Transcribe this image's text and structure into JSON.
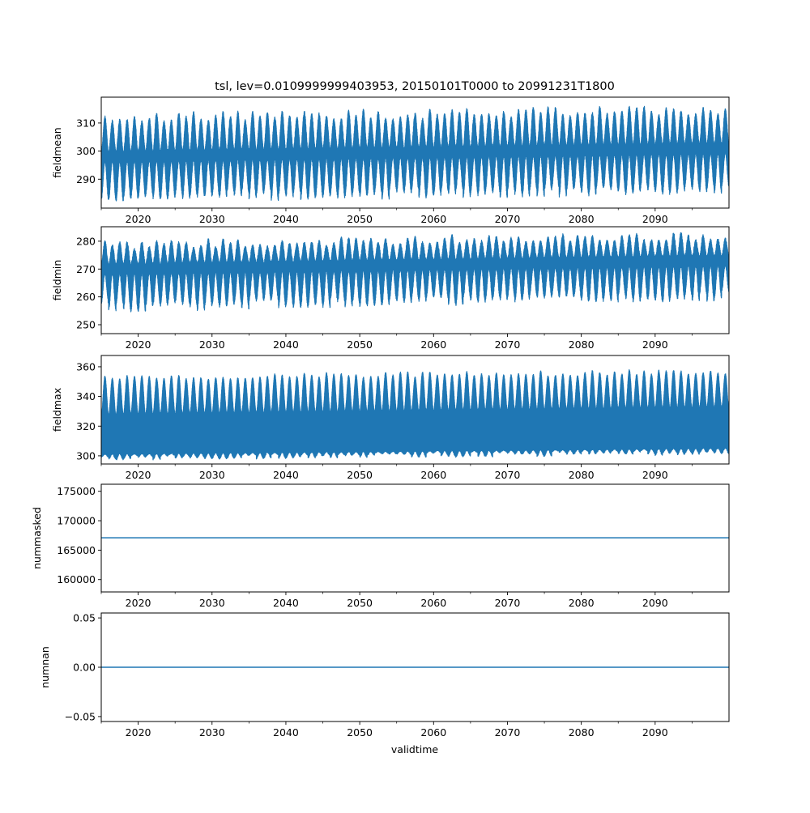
{
  "chart_data": {
    "type": "line",
    "title": "tsl, lev=0.0109999999403953, 20150101T0000 to 20991231T1800",
    "xlabel": "validtime",
    "xlim": [
      2015,
      2100
    ],
    "x_major_ticks": [
      2020,
      2030,
      2040,
      2050,
      2060,
      2070,
      2080,
      2090
    ],
    "x_tick_labels": [
      "2020",
      "2030",
      "2040",
      "2050",
      "2060",
      "2070",
      "2080",
      "2090"
    ],
    "x_minor_ticks": [
      2015,
      2025,
      2035,
      2045,
      2055,
      2065,
      2075,
      2085,
      2095
    ],
    "line_color": "#1f77b4",
    "grid": false,
    "panels": [
      {
        "ylabel": "fieldmean",
        "ylim": [
          279.7,
          319.2
        ],
        "yticks": [
          290,
          300,
          310
        ],
        "ytick_labels": [
          "290",
          "300",
          "310"
        ],
        "kind": "seasonal",
        "envelope_start": {
          "hi_summer": 312,
          "hi_winter": 300,
          "lo_summer": 296,
          "lo_winter": 283
        },
        "envelope_end": {
          "hi_summer": 315,
          "hi_winter": 303,
          "lo_summer": 299,
          "lo_winter": 286
        }
      },
      {
        "ylabel": "fieldmin",
        "ylim": [
          246.8,
          285.2
        ],
        "yticks": [
          250,
          260,
          270,
          280
        ],
        "ytick_labels": [
          "250",
          "260",
          "270",
          "280"
        ],
        "kind": "seasonal",
        "envelope_start": {
          "hi_summer": 279,
          "hi_winter": 272,
          "lo_summer": 268,
          "lo_winter": 256
        },
        "envelope_end": {
          "hi_summer": 282.5,
          "hi_winter": 275,
          "lo_summer": 271,
          "lo_winter": 260
        }
      },
      {
        "ylabel": "fieldmax",
        "ylim": [
          294.5,
          367.6
        ],
        "yticks": [
          300,
          320,
          340,
          360
        ],
        "ytick_labels": [
          "300",
          "320",
          "340",
          "360"
        ],
        "kind": "seasonal",
        "envelope_start": {
          "hi_summer": 353,
          "hi_winter": 328,
          "lo_summer": 301,
          "lo_winter": 298.5
        },
        "envelope_end": {
          "hi_summer": 357,
          "hi_winter": 333,
          "lo_summer": 305,
          "lo_winter": 302
        }
      },
      {
        "ylabel": "nummasked",
        "ylim": [
          157900,
          176200
        ],
        "yticks": [
          160000,
          165000,
          170000,
          175000
        ],
        "ytick_labels": [
          "160000",
          "165000",
          "170000",
          "175000"
        ],
        "kind": "constant",
        "value": 167100
      },
      {
        "ylabel": "numnan",
        "ylim": [
          -0.055,
          0.055
        ],
        "yticks": [
          -0.05,
          0.0,
          0.05
        ],
        "ytick_labels": [
          "−0.05",
          "0.00",
          "0.05"
        ],
        "kind": "constant",
        "value": 0
      }
    ]
  }
}
